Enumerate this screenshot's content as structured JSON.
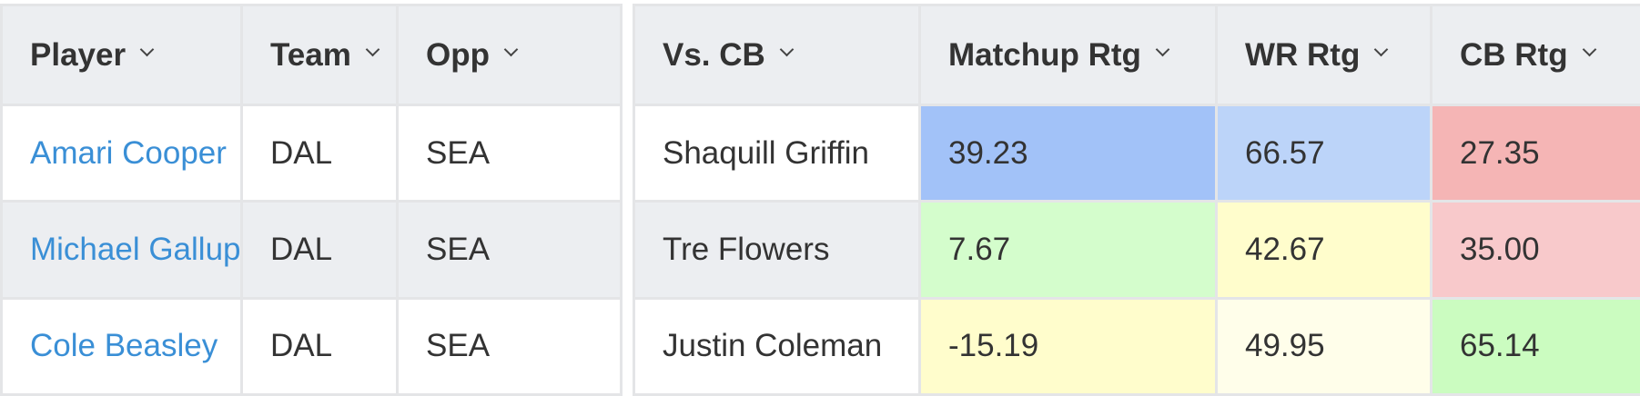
{
  "left_table": {
    "headers": [
      "Player",
      "Team",
      "Opp"
    ],
    "rows": [
      {
        "player": "Amari Cooper",
        "team": "DAL",
        "opp": "SEA"
      },
      {
        "player": "Michael Gallup",
        "team": "DAL",
        "opp": "SEA"
      },
      {
        "player": "Cole Beasley",
        "team": "DAL",
        "opp": "SEA"
      }
    ]
  },
  "right_table": {
    "headers": [
      "Vs. CB",
      "Matchup Rtg",
      "WR Rtg",
      "CB Rtg"
    ],
    "rows": [
      {
        "vs_cb": "Shaquill Griffin",
        "matchup": "39.23",
        "wr": "66.57",
        "cb": "27.35"
      },
      {
        "vs_cb": "Tre Flowers",
        "matchup": "7.67",
        "wr": "42.67",
        "cb": "35.00"
      },
      {
        "vs_cb": "Justin Coleman",
        "matchup": "-15.19",
        "wr": "49.95",
        "cb": "65.14"
      }
    ]
  },
  "cell_colors": {
    "matchup": [
      "#a2c2f8",
      "#d4fdcc",
      "#fffdcc"
    ],
    "wr": [
      "#bcd4f9",
      "#fffdcc",
      "#fffeea"
    ],
    "cb": [
      "#f5b5b5",
      "#f8c9cb",
      "#cbfcc0"
    ]
  },
  "icons": {
    "sort": "chevron-down-icon"
  }
}
